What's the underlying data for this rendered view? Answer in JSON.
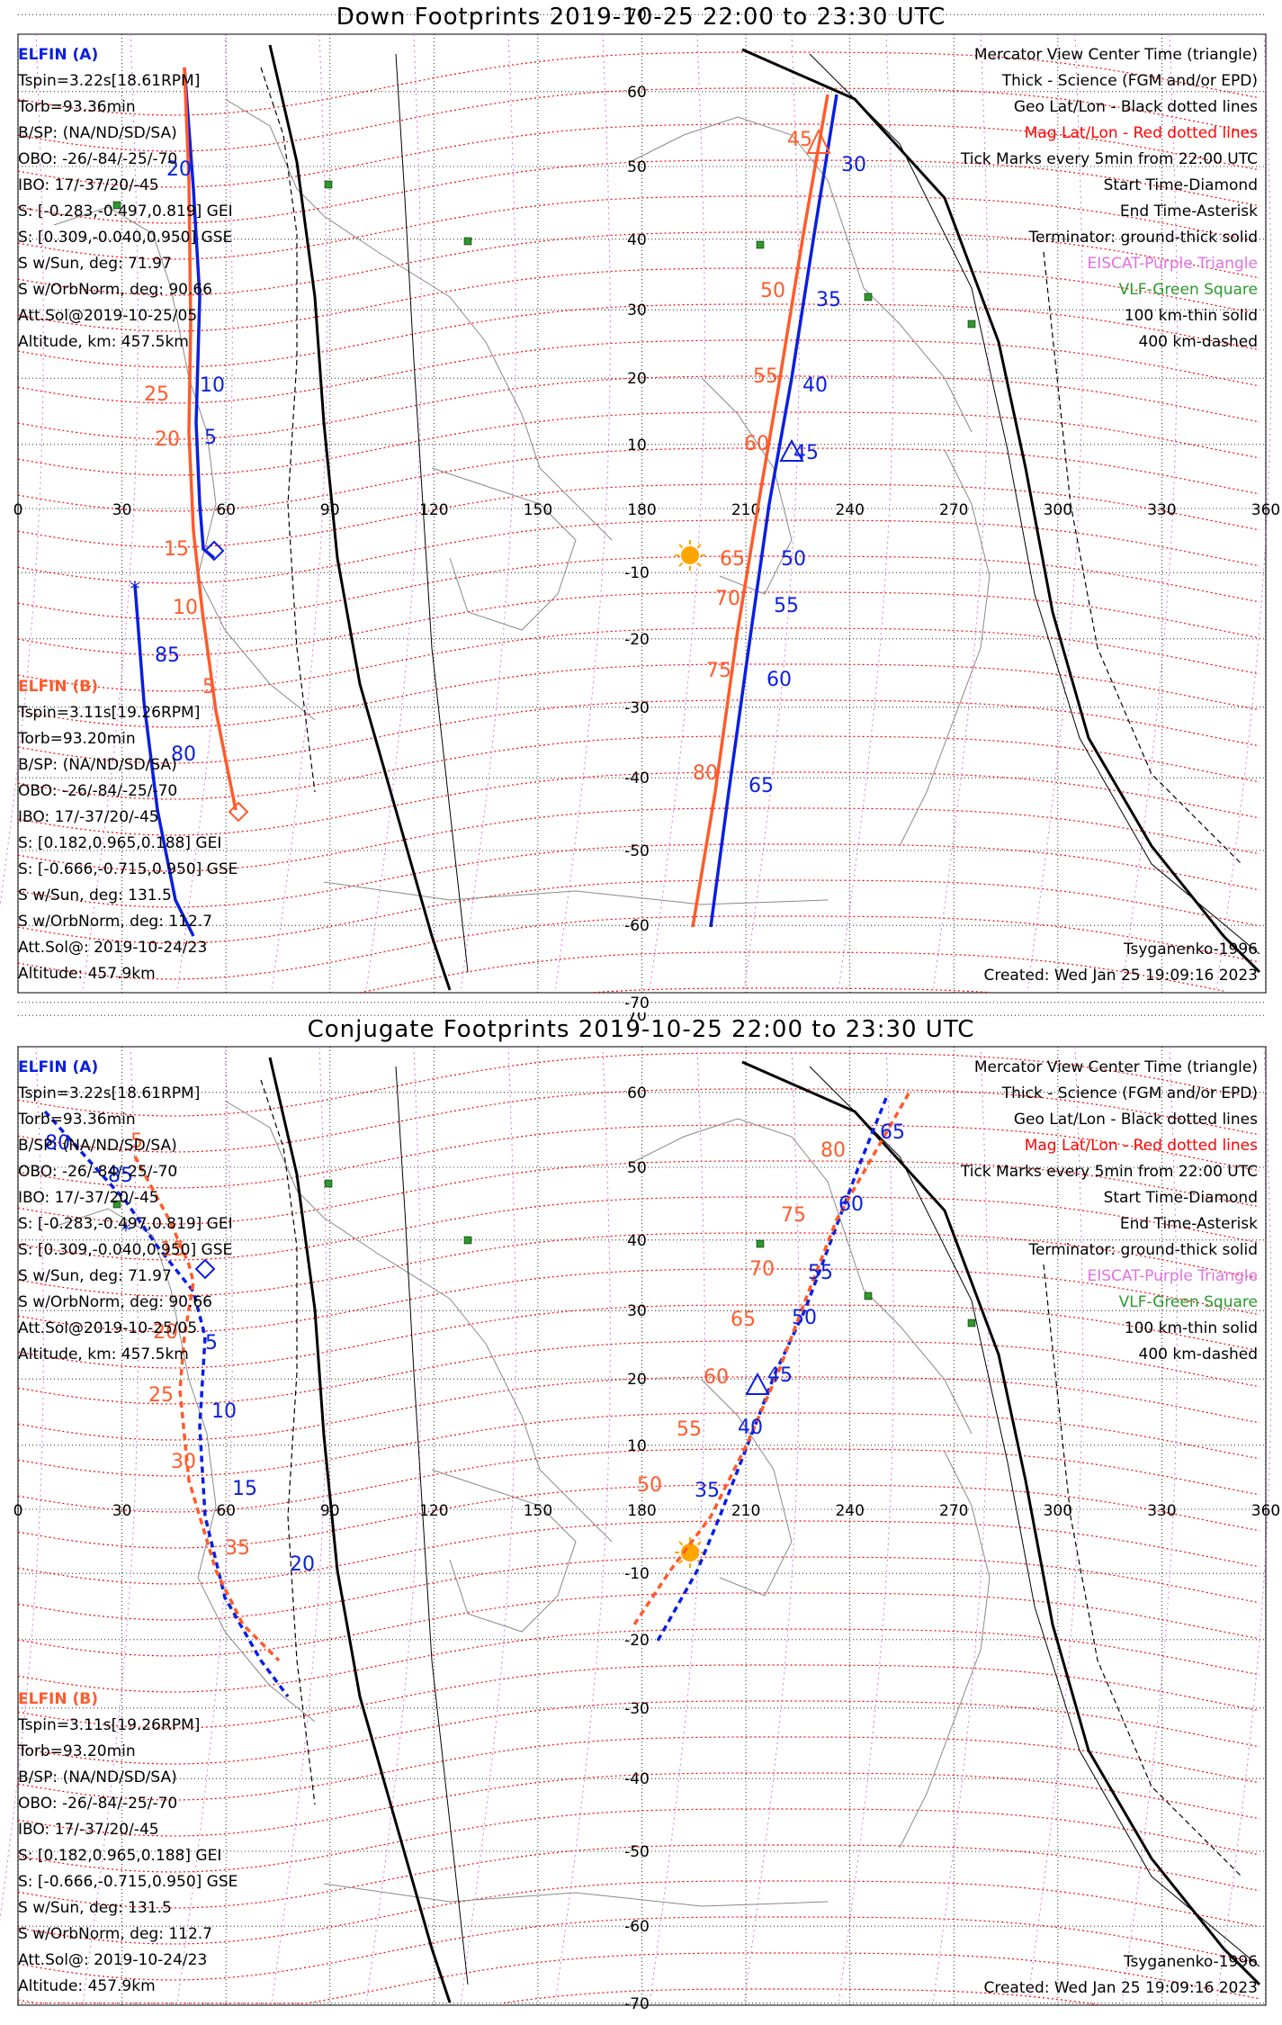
{
  "colors": {
    "sat_a": "#0a1fe0",
    "sat_b": "#ff5a2a",
    "geo": "#000000",
    "mag": "#ff0000",
    "eiscat": "#e070e0",
    "vlf": "#2a9a2a",
    "sun": "#ffa500"
  },
  "panels": [
    {
      "title": "Down Footprints 2019-10-25 22:00 to 23:30 UTC",
      "left_a": {
        "label": "ELFIN (A)",
        "lines": [
          "Tspin=3.22s[18.61RPM]",
          "Torb=93.36min",
          "B/SP: (NA/ND/SD/SA)",
          "OBO: -26/-84/-25/-70",
          "IBO: 17/-37/20/-45",
          "S: [-0.283,-0.497,0.819] GEI",
          "S: [0.309,-0.040,0.950] GSE",
          "S w/Sun, deg: 71.97",
          "S w/OrbNorm, deg: 90.66",
          "Att.Sol@2019-10-25/05",
          "Altitude, km: 457.5km"
        ]
      },
      "left_b": {
        "label": "ELFIN (B)",
        "lines": [
          "Tspin=3.11s[19.26RPM]",
          "Torb=93.20min",
          "B/SP: (NA/ND/SD/SA)",
          "OBO: -26/-84/-25/-70",
          "IBO: 17/-37/20/-45",
          "S: [0.182,0.965,0.188] GEI",
          "S: [-0.666,-0.715,0.950] GSE",
          "S w/Sun, deg: 131.5",
          "S w/OrbNorm, deg: 112.7",
          "Att.Sol@: 2019-10-24/23",
          "Altitude: 457.9km"
        ]
      },
      "legend": [
        "Mercator View Center Time (triangle)",
        "Thick - Science (FGM and/or EPD)",
        "Geo Lat/Lon - Black dotted lines",
        "Mag Lat/Lon - Red dotted lines",
        "Tick Marks every 5min from 22:00 UTC",
        "Start Time-Diamond",
        "End Time-Asterisk",
        "Terminator: ground-thick solid",
        "EISCAT-Purple Triangle",
        "VLF-Green Square",
        "100 km-thin solid",
        "400 km-dashed"
      ],
      "model": "Tsyganenko-1996",
      "created": "Created: Wed Jan 25 19:09:16 2023",
      "lon_ticks": [
        "0",
        "30",
        "60",
        "90",
        "120",
        "150",
        "180",
        "210",
        "240",
        "270",
        "300",
        "330",
        "360"
      ],
      "lat_ticks": [
        "70",
        "60",
        "50",
        "40",
        "30",
        "20",
        "10",
        "-10",
        "-20",
        "-30",
        "-40",
        "-50",
        "-60",
        "-70"
      ],
      "a_east": [
        {
          "t": "30",
          "x": 0,
          "y": 0
        },
        {
          "t": "35"
        },
        {
          "t": "40"
        },
        {
          "t": "45"
        },
        {
          "t": "50"
        },
        {
          "t": "55"
        },
        {
          "t": "60"
        },
        {
          "t": "65"
        }
      ],
      "b_east": [
        "45",
        "50",
        "55",
        "60",
        "65",
        "70",
        "75",
        "80"
      ],
      "a_west": [
        "20",
        "10",
        "5",
        "85",
        "80"
      ],
      "b_west": [
        "25",
        "20",
        "15",
        "10",
        "5"
      ]
    },
    {
      "title": "Conjugate Footprints 2019-10-25 22:00 to 23:30 UTC",
      "a_east": [
        "65",
        "60",
        "55",
        "50",
        "45",
        "40",
        "35"
      ],
      "b_east": [
        "80",
        "75",
        "70",
        "65",
        "60",
        "55",
        "50"
      ],
      "a_west": [
        "80",
        "85",
        "5",
        "10",
        "15",
        "20"
      ],
      "b_west": [
        "5",
        "15",
        "20",
        "25",
        "30",
        "35"
      ]
    }
  ]
}
